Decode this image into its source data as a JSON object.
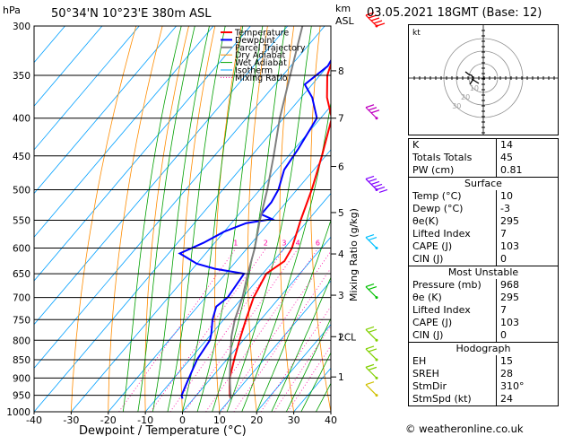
{
  "header": {
    "hpa_unit": "hPa",
    "location": "50°34'N  10°23'E  380m  ASL",
    "km_unit": "km",
    "asl_unit": "ASL",
    "datetime": "03.05.2021  18GMT  (Base: 12)"
  },
  "legend": [
    "Temperature",
    "Dewpoint",
    "Parcel Trajectory",
    "Dry Adiabat",
    "Wet Adiabat",
    "Isotherm",
    "Mixing Ratio"
  ],
  "colors": {
    "temperature": "#ff0000",
    "dewpoint": "#0000ff",
    "parcel": "#808080",
    "dry_adiabat": "#ff8c00",
    "wet_adiabat": "#00a000",
    "isotherm": "#00a0ff",
    "mixing_ratio": "#ff00a0",
    "wind_barb": "#c0d000"
  },
  "chart_data": {
    "type": "line",
    "xlabel": "Dewpoint / Temperature (°C)",
    "ylabel": "hPa",
    "right_label": "Mixing Ratio (g/kg)",
    "xlim": [
      -40,
      40
    ],
    "ylim": [
      1000,
      300
    ],
    "x_ticks": [
      "-40",
      "-30",
      "-20",
      "-10",
      "0",
      "10",
      "20",
      "30",
      "40"
    ],
    "pressure_ticks": [
      "300",
      "350",
      "400",
      "450",
      "500",
      "550",
      "600",
      "650",
      "700",
      "750",
      "800",
      "850",
      "900",
      "950",
      "1000"
    ],
    "km_ticks": [
      {
        "label": "8",
        "p": 345
      },
      {
        "label": "7",
        "p": 400
      },
      {
        "label": "6",
        "p": 465
      },
      {
        "label": "5",
        "p": 537
      },
      {
        "label": "4",
        "p": 611
      },
      {
        "label": "3",
        "p": 695
      },
      {
        "label": "2",
        "p": 791
      },
      {
        "label": "1",
        "p": 897
      }
    ],
    "lcl_label": "LCL",
    "lcl_p": 791,
    "mixing_ratio_labels": [
      "1",
      "2",
      "3",
      "4",
      "6",
      "8",
      "10",
      "16",
      "20",
      "25"
    ],
    "series": [
      {
        "name": "Temperature",
        "points": [
          [
            960,
            10
          ],
          [
            950,
            9
          ],
          [
            925,
            7
          ],
          [
            900,
            5
          ],
          [
            850,
            2
          ],
          [
            800,
            -1
          ],
          [
            750,
            -4
          ],
          [
            700,
            -7
          ],
          [
            650,
            -9
          ],
          [
            625,
            -7
          ],
          [
            600,
            -8
          ],
          [
            550,
            -12
          ],
          [
            500,
            -16
          ],
          [
            450,
            -21
          ],
          [
            400,
            -27
          ],
          [
            375,
            -33
          ],
          [
            350,
            -38
          ],
          [
            320,
            -42
          ],
          [
            300,
            -45
          ]
        ]
      },
      {
        "name": "Dewpoint",
        "points": [
          [
            960,
            -3
          ],
          [
            950,
            -4
          ],
          [
            925,
            -5
          ],
          [
            900,
            -6
          ],
          [
            850,
            -8
          ],
          [
            800,
            -9
          ],
          [
            785,
            -10
          ],
          [
            750,
            -13
          ],
          [
            720,
            -15
          ],
          [
            700,
            -14
          ],
          [
            650,
            -15
          ],
          [
            640,
            -24
          ],
          [
            630,
            -30
          ],
          [
            610,
            -37
          ],
          [
            590,
            -33
          ],
          [
            570,
            -30
          ],
          [
            555,
            -26
          ],
          [
            548,
            -20
          ],
          [
            540,
            -24
          ],
          [
            520,
            -24
          ],
          [
            500,
            -25
          ],
          [
            470,
            -28
          ],
          [
            440,
            -29
          ],
          [
            400,
            -31
          ],
          [
            375,
            -37
          ],
          [
            360,
            -42
          ],
          [
            340,
            -40
          ],
          [
            300,
            -43
          ]
        ]
      },
      {
        "name": "Parcel Trajectory",
        "points": [
          [
            960,
            10
          ],
          [
            900,
            5
          ],
          [
            850,
            1
          ],
          [
            791,
            -4
          ],
          [
            750,
            -7
          ],
          [
            700,
            -10
          ],
          [
            650,
            -14
          ],
          [
            600,
            -18
          ],
          [
            550,
            -23
          ],
          [
            500,
            -28
          ],
          [
            450,
            -34
          ],
          [
            400,
            -41
          ],
          [
            350,
            -48
          ],
          [
            300,
            -56
          ]
        ]
      }
    ],
    "wind_barbs": [
      {
        "p": 300,
        "kt": 50,
        "color": "#ff0000"
      },
      {
        "p": 400,
        "kt": 30,
        "color": "#c000c0"
      },
      {
        "p": 500,
        "kt": 60,
        "color": "#8000ff"
      },
      {
        "p": 600,
        "kt": 20,
        "color": "#00c0ff"
      },
      {
        "p": 700,
        "kt": 20,
        "color": "#00c000"
      },
      {
        "p": 800,
        "kt": 15,
        "color": "#80d000"
      },
      {
        "p": 850,
        "kt": 15,
        "color": "#80d000"
      },
      {
        "p": 900,
        "kt": 15,
        "color": "#80d000"
      },
      {
        "p": 950,
        "kt": 10,
        "color": "#d0c000"
      }
    ]
  },
  "hodograph": {
    "label": "kt",
    "rings": [
      "10",
      "20",
      "30"
    ]
  },
  "indices": {
    "k_label": "K",
    "k": "14",
    "tt_label": "Totals Totals",
    "tt": "45",
    "pw_label": "PW (cm)",
    "pw": "0.81"
  },
  "surface": {
    "title": "Surface",
    "temp_label": "Temp (°C)",
    "temp": "10",
    "dewp_label": "Dewp (°C)",
    "dewp": "-3",
    "thetae_label": "θe(K)",
    "thetae": "295",
    "li_label": "Lifted Index",
    "li": "7",
    "cape_label": "CAPE (J)",
    "cape": "103",
    "cin_label": "CIN (J)",
    "cin": "0"
  },
  "most_unstable": {
    "title": "Most Unstable",
    "pressure_label": "Pressure (mb)",
    "pressure": "968",
    "thetae_label": "θe (K)",
    "thetae": "295",
    "li_label": "Lifted Index",
    "li": "7",
    "cape_label": "CAPE (J)",
    "cape": "103",
    "cin_label": "CIN (J)",
    "cin": "0"
  },
  "hodograph_table": {
    "title": "Hodograph",
    "eh_label": "EH",
    "eh": "15",
    "sreh_label": "SREH",
    "sreh": "28",
    "stmdir_label": "StmDir",
    "stmdir": "310°",
    "stmspd_label": "StmSpd (kt)",
    "stmspd": "24"
  },
  "credit": "© weatheronline.co.uk"
}
